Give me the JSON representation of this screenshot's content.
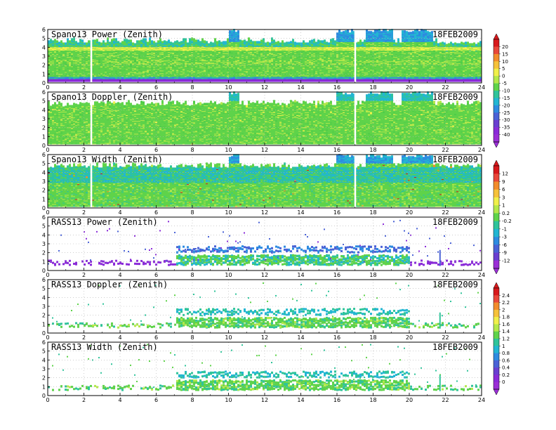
{
  "figure": {
    "date": "18FEB2009",
    "x_ticks": [
      "0",
      "2",
      "4",
      "6",
      "8",
      "10",
      "12",
      "14",
      "16",
      "18",
      "20",
      "22",
      "24"
    ],
    "y_ticks": [
      "0",
      "1",
      "2",
      "3",
      "4",
      "5",
      "6"
    ]
  },
  "colorbars": [
    {
      "id": "power-doppler-colorbar",
      "labels": [
        "20",
        "15",
        "10",
        "5",
        "0",
        "-5",
        "-10",
        "-15",
        "-20",
        "-25",
        "-30",
        "-35",
        "-40"
      ],
      "colors": [
        "#d7191c",
        "#e8473a",
        "#f28c2c",
        "#f6c23a",
        "#f0f04a",
        "#b4e84a",
        "#5fd34a",
        "#2fc49a",
        "#22b6d2",
        "#2e8be0",
        "#4a62d6",
        "#6a3fd0",
        "#8a2bd8",
        "#9b2fd6"
      ]
    },
    {
      "id": "width-colorbar",
      "labels": [
        "12",
        "9",
        "6",
        "3",
        "1",
        "0.2",
        "-0.2",
        "-1",
        "-3",
        "-6",
        "-9",
        "-12"
      ],
      "colors": [
        "#d7191c",
        "#e8473a",
        "#f28c2c",
        "#f6c23a",
        "#f0f04a",
        "#b4e84a",
        "#5fd34a",
        "#2fc49a",
        "#22b6d2",
        "#2e8be0",
        "#4a62d6",
        "#6a3fd0",
        "#9b2fd6"
      ]
    },
    {
      "id": "rass-doppler-width-colorbar",
      "labels": [
        "2.4",
        "2.2",
        "2",
        "1.8",
        "1.6",
        "1.4",
        "1.2",
        "1",
        "0.8",
        "0.6",
        "0.4",
        "0.2",
        "0"
      ],
      "colors": [
        "#d7191c",
        "#e8473a",
        "#f28c2c",
        "#f6c23a",
        "#f0f04a",
        "#b4e84a",
        "#5fd34a",
        "#2fc49a",
        "#22b6d2",
        "#2e8be0",
        "#4a62d6",
        "#6a3fd0",
        "#8a2bd8",
        "#9b2fd6"
      ]
    }
  ],
  "chart_data": [
    {
      "type": "heatmap",
      "title": "Spano13 Power (Zenith)",
      "date": "18FEB2009",
      "x_range": [
        0,
        24
      ],
      "y_range": [
        0,
        6
      ],
      "kind": "spano-power",
      "gaps_x": [
        2.4,
        17.0
      ],
      "top_features": [
        [
          10.0,
          10.6
        ],
        [
          15.9,
          16.9
        ],
        [
          17.5,
          19.0
        ],
        [
          19.5,
          21.3
        ]
      ]
    },
    {
      "type": "heatmap",
      "title": "Spano13 Doppler (Zenith)",
      "date": "18FEB2009",
      "x_range": [
        0,
        24
      ],
      "y_range": [
        0,
        6
      ],
      "kind": "spano-doppler",
      "gaps_x": [
        2.4,
        17.0
      ],
      "top_features": [
        [
          10.0,
          10.6
        ],
        [
          15.9,
          16.9
        ],
        [
          17.5,
          19.0
        ],
        [
          19.5,
          21.3
        ]
      ]
    },
    {
      "type": "heatmap",
      "title": "Spano13 Width (Zenith)",
      "date": "18FEB2009",
      "x_range": [
        0,
        24
      ],
      "y_range": [
        0,
        6
      ],
      "kind": "spano-width",
      "gaps_x": [
        2.4,
        17.0
      ],
      "top_features": [
        [
          10.0,
          10.6
        ],
        [
          15.9,
          16.9
        ],
        [
          17.5,
          19.0
        ],
        [
          19.5,
          21.3
        ]
      ]
    },
    {
      "type": "heatmap",
      "title": "RASS13 Power (Zenith)",
      "date": "18FEB2009",
      "x_range": [
        0,
        24
      ],
      "y_range": [
        0,
        6
      ],
      "kind": "rass-power",
      "dense_x": [
        7.0,
        20.0
      ]
    },
    {
      "type": "heatmap",
      "title": "RASS13 Doppler (Zenith)",
      "date": "18FEB2009",
      "x_range": [
        0,
        24
      ],
      "y_range": [
        0,
        6
      ],
      "kind": "rass-doppler",
      "dense_x": [
        7.0,
        20.0
      ]
    },
    {
      "type": "heatmap",
      "title": "RASS13 Width (Zenith)",
      "date": "18FEB2009",
      "x_range": [
        0,
        24
      ],
      "y_range": [
        0,
        6
      ],
      "kind": "rass-width",
      "dense_x": [
        7.0,
        20.0
      ]
    }
  ]
}
